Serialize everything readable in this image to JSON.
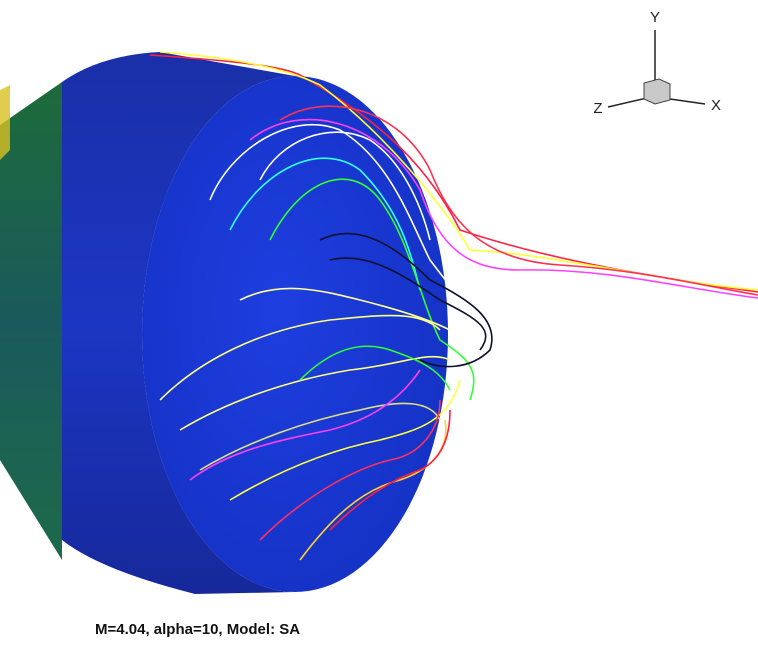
{
  "axes_triad": {
    "y_label": "Y",
    "x_label": "X",
    "z_label": "Z"
  },
  "caption": "M=4.04, alpha=10, Model: SA"
}
